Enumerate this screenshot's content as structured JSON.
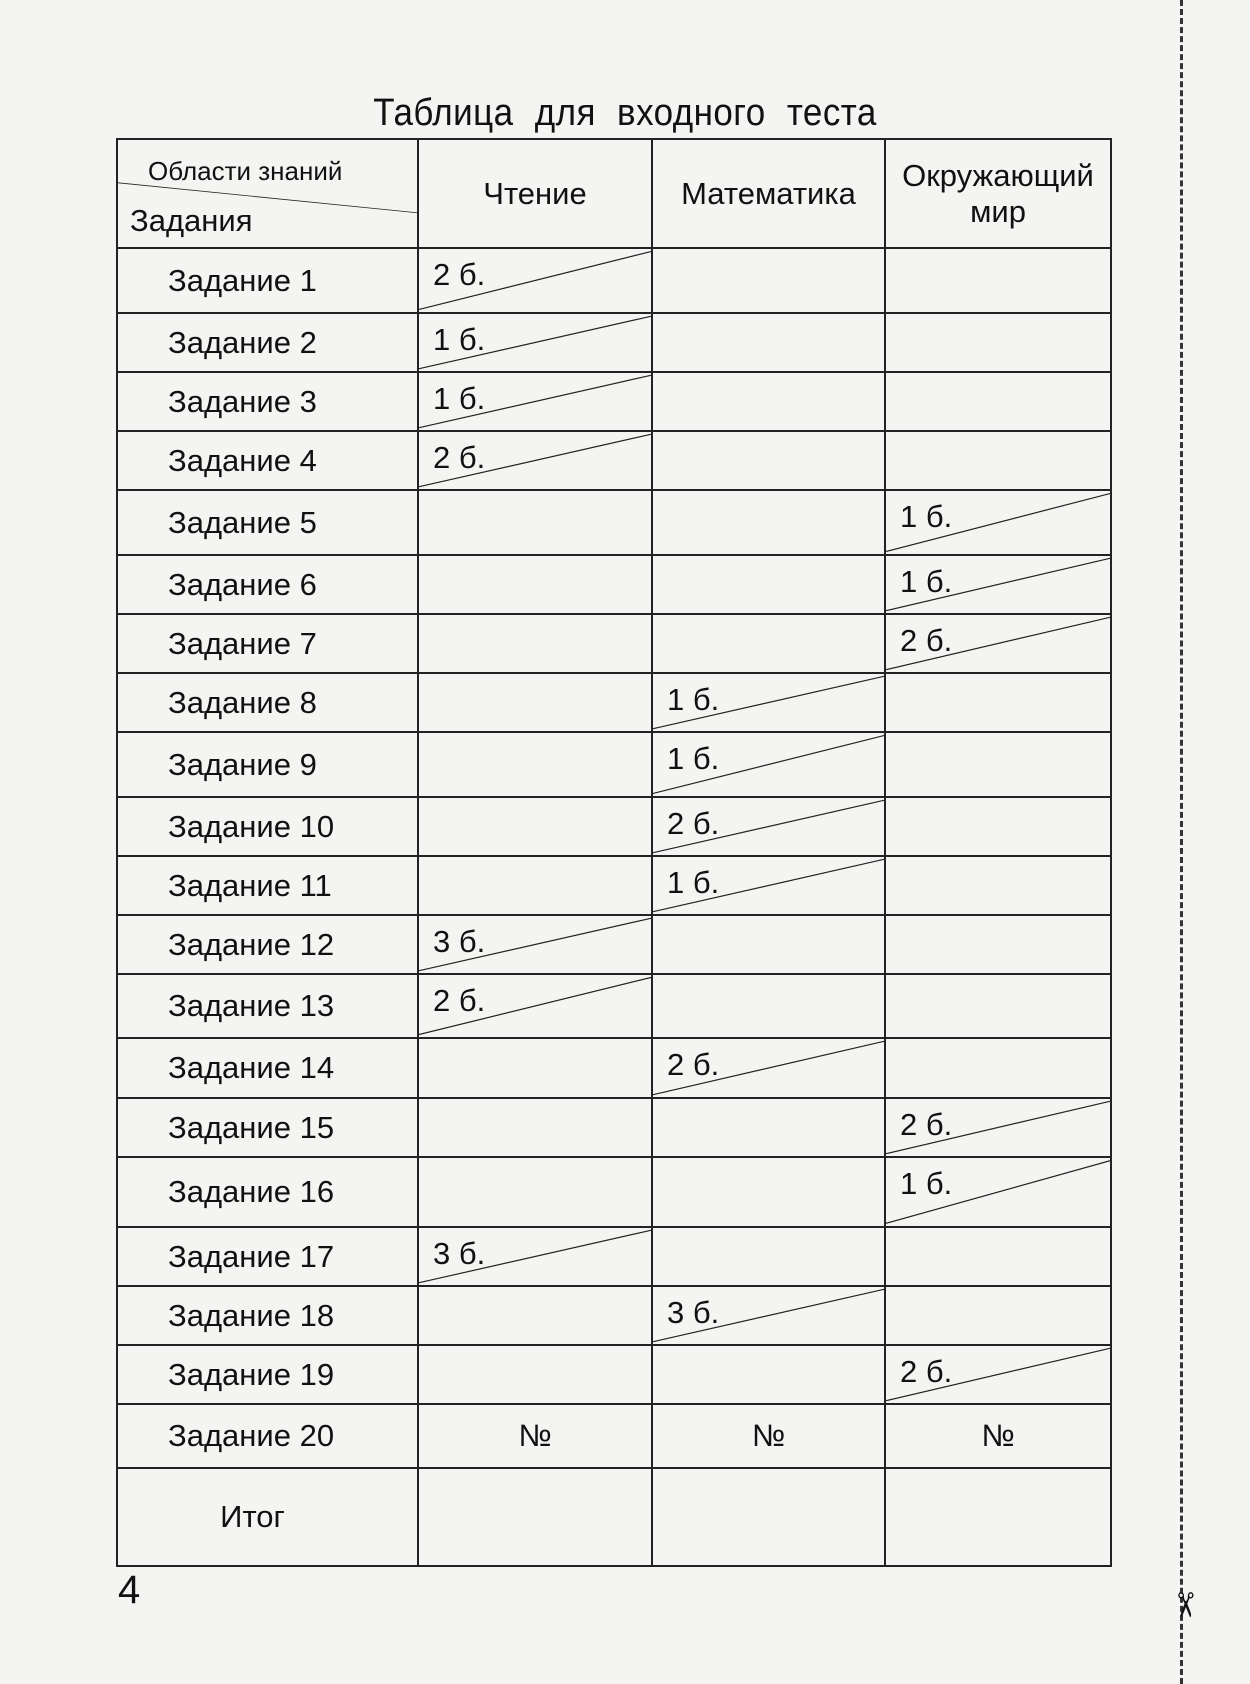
{
  "title": "Таблица для входного теста",
  "header": {
    "corner_top": "Области знаний",
    "corner_bottom": "Задания",
    "columns": [
      "Чтение",
      "Математика",
      "Окружающий мир"
    ]
  },
  "rows": [
    {
      "task": "Задание 1",
      "cells": [
        "2 б.",
        "",
        ""
      ]
    },
    {
      "task": "Задание 2",
      "cells": [
        "1 б.",
        "",
        ""
      ]
    },
    {
      "task": "Задание 3",
      "cells": [
        "1 б.",
        "",
        ""
      ]
    },
    {
      "task": "Задание 4",
      "cells": [
        "2 б.",
        "",
        ""
      ]
    },
    {
      "task": "Задание 5",
      "cells": [
        "",
        "",
        "1 б."
      ]
    },
    {
      "task": "Задание 6",
      "cells": [
        "",
        "",
        "1 б."
      ]
    },
    {
      "task": "Задание 7",
      "cells": [
        "",
        "",
        "2 б."
      ]
    },
    {
      "task": "Задание 8",
      "cells": [
        "",
        "1 б.",
        ""
      ]
    },
    {
      "task": "Задание 9",
      "cells": [
        "",
        "1 б.",
        ""
      ]
    },
    {
      "task": "Задание 10",
      "cells": [
        "",
        "2 б.",
        ""
      ]
    },
    {
      "task": "Задание 11",
      "cells": [
        "",
        "1 б.",
        ""
      ]
    },
    {
      "task": "Задание 12",
      "cells": [
        "3 б.",
        "",
        ""
      ]
    },
    {
      "task": "Задание 13",
      "cells": [
        "2 б.",
        "",
        ""
      ]
    },
    {
      "task": "Задание 14",
      "cells": [
        "",
        "2 б.",
        ""
      ]
    },
    {
      "task": "Задание 15",
      "cells": [
        "",
        "",
        "2 б."
      ]
    },
    {
      "task": "Задание 16",
      "cells": [
        "",
        "",
        "1 б."
      ]
    },
    {
      "task": "Задание 17",
      "cells": [
        "3 б.",
        "",
        ""
      ]
    },
    {
      "task": "Задание 18",
      "cells": [
        "",
        "3 б.",
        ""
      ]
    },
    {
      "task": "Задание 19",
      "cells": [
        "",
        "",
        "2 б."
      ]
    },
    {
      "task": "Задание 20",
      "cells": [
        "№",
        "№",
        "№"
      ],
      "numbers": true
    }
  ],
  "total_label": "Итог",
  "page_number": "4",
  "scissors_icon": "scissors-icon"
}
